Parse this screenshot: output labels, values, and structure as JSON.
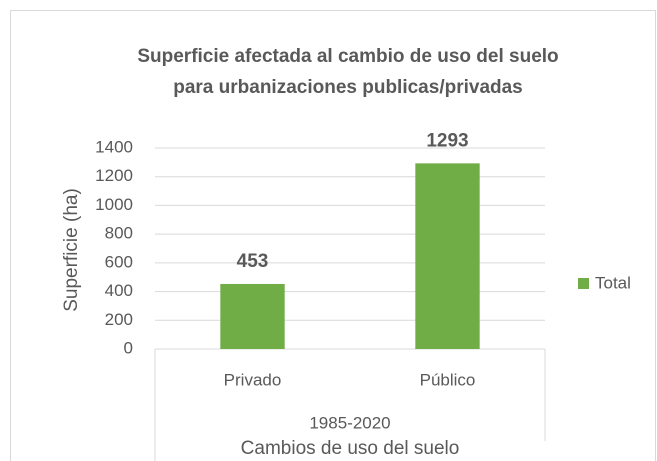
{
  "chart_data": {
    "type": "bar",
    "title": [
      "Superficie afectada al cambio de uso del suelo",
      "para urbanizaciones publicas/privadas"
    ],
    "categories": [
      "Privado",
      "Público"
    ],
    "category_group": "1985-2020",
    "xlabel": "Cambios de uso del suelo",
    "ylabel": "Superficie (ha)",
    "series": [
      {
        "name": "Total",
        "color": "#70ad47",
        "values": [
          453,
          1293
        ]
      }
    ],
    "ylim": [
      0,
      1400
    ],
    "yticks": [
      0,
      200,
      400,
      600,
      800,
      1000,
      1200,
      1400
    ],
    "grid": true,
    "legend": "right"
  }
}
